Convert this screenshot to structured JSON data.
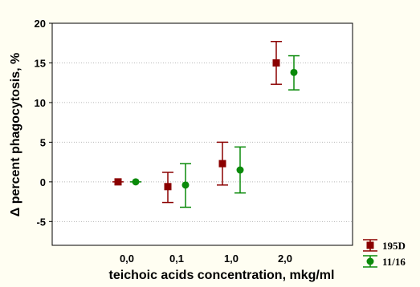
{
  "chart_data": {
    "type": "scatter",
    "title": "",
    "xlabel": "teichoic acids concentration, mkg/ml",
    "ylabel": "Δ percent phagocytosis, %",
    "categories": [
      "0,0",
      "0,1",
      "1,0",
      "2,0"
    ],
    "ylim": [
      -8,
      20
    ],
    "yticks": [
      -5,
      0,
      5,
      10,
      15,
      20
    ],
    "grid": true,
    "legend_position": "bottom-right outside",
    "series": [
      {
        "name": "195D",
        "color": "#8b0000",
        "marker": "square",
        "values": [
          0.0,
          -0.6,
          2.3,
          15.0
        ],
        "err_low": [
          0.0,
          -2.6,
          -0.4,
          12.3
        ],
        "err_high": [
          0.0,
          1.2,
          5.0,
          17.7
        ]
      },
      {
        "name": "11/16",
        "color": "#0a8a0a",
        "marker": "circle",
        "values": [
          0.0,
          -0.4,
          1.5,
          13.8
        ],
        "err_low": [
          0.0,
          -3.2,
          -1.4,
          11.6
        ],
        "err_high": [
          0.0,
          2.3,
          4.4,
          15.9
        ]
      }
    ]
  }
}
